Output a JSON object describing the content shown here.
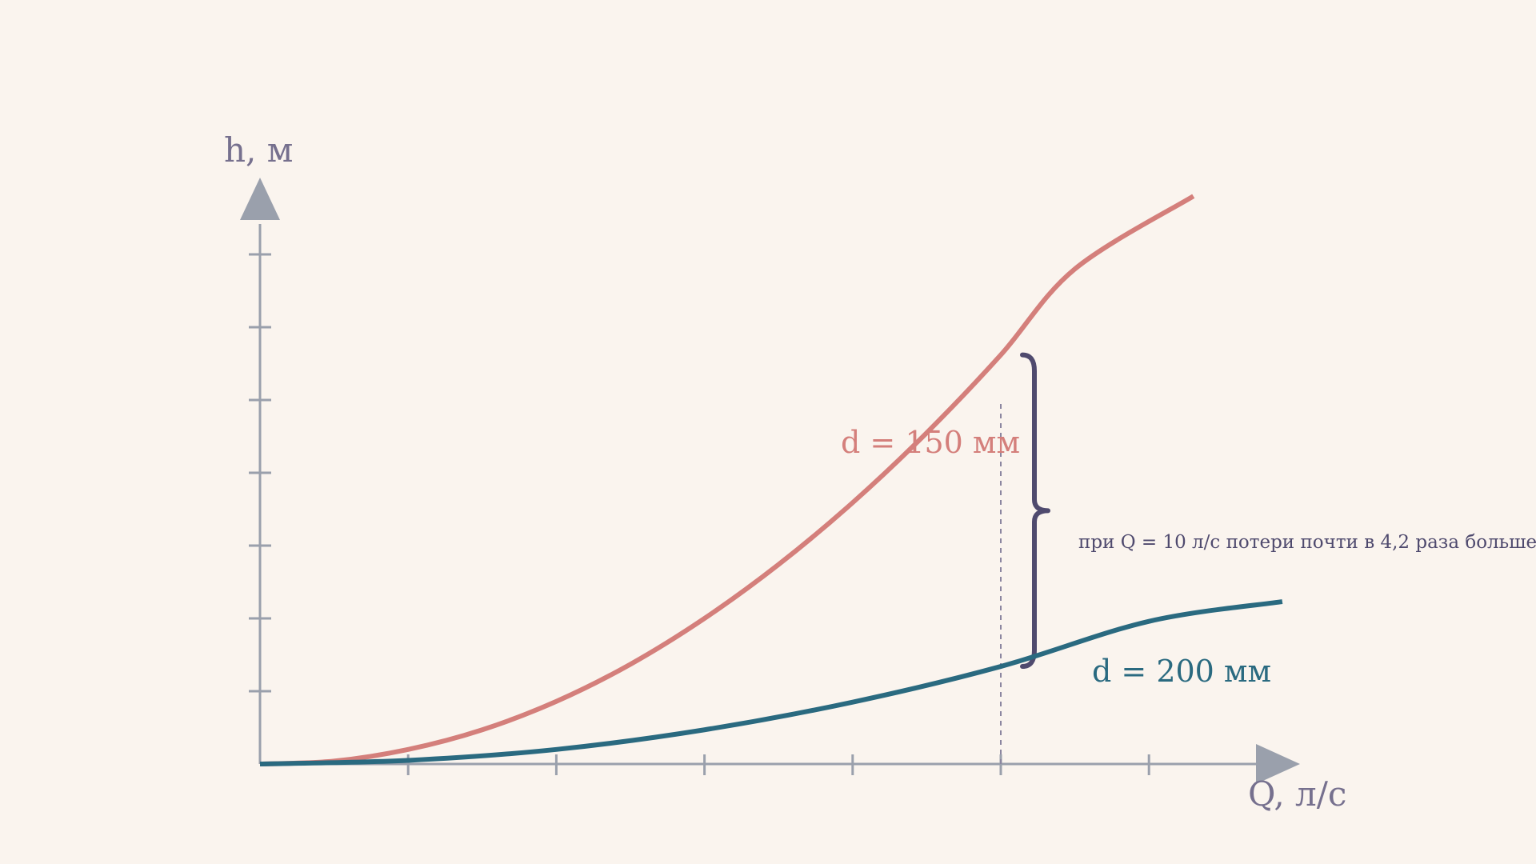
{
  "chart_data": {
    "type": "line",
    "xlabel": "Q, л/с",
    "ylabel": "h, м",
    "xlim": [
      0,
      14.4
    ],
    "ylim": [
      0,
      8
    ],
    "x_ticks": [
      2,
      4,
      6,
      8,
      10,
      12
    ],
    "y_ticks": [
      1,
      2,
      3,
      4,
      5,
      6,
      7
    ],
    "tick_labels_shown": false,
    "grid": false,
    "legend": "none",
    "series": [
      {
        "name": "d = 150 мм",
        "color": "#d47f7b",
        "x": [
          0,
          1,
          2,
          3,
          4,
          5,
          6,
          7,
          8,
          9,
          10,
          11,
          12.6
        ],
        "y": [
          0,
          0.04,
          0.2,
          0.47,
          0.86,
          1.37,
          2.0,
          2.74,
          3.59,
          4.55,
          5.62,
          6.8,
          7.8
        ]
      },
      {
        "name": "d = 200 мм",
        "color": "#2a6a80",
        "x": [
          0,
          2,
          4,
          6,
          8,
          10,
          12,
          13.8
        ],
        "y": [
          0,
          0.05,
          0.2,
          0.47,
          0.85,
          1.34,
          1.96,
          2.23
        ]
      }
    ],
    "annotations": [
      {
        "type": "vline",
        "x": 10,
        "style": "dashed"
      },
      {
        "type": "brace",
        "x": 10,
        "from": 1.34,
        "to": 5.62,
        "text": "при Q = 10 л/с потери почти в 4,2 раза больше"
      }
    ]
  },
  "colors": {
    "background": "#faf4ee",
    "axis": "#9aa0ac",
    "label": "#76708e",
    "brace": "#4f4a6e"
  }
}
